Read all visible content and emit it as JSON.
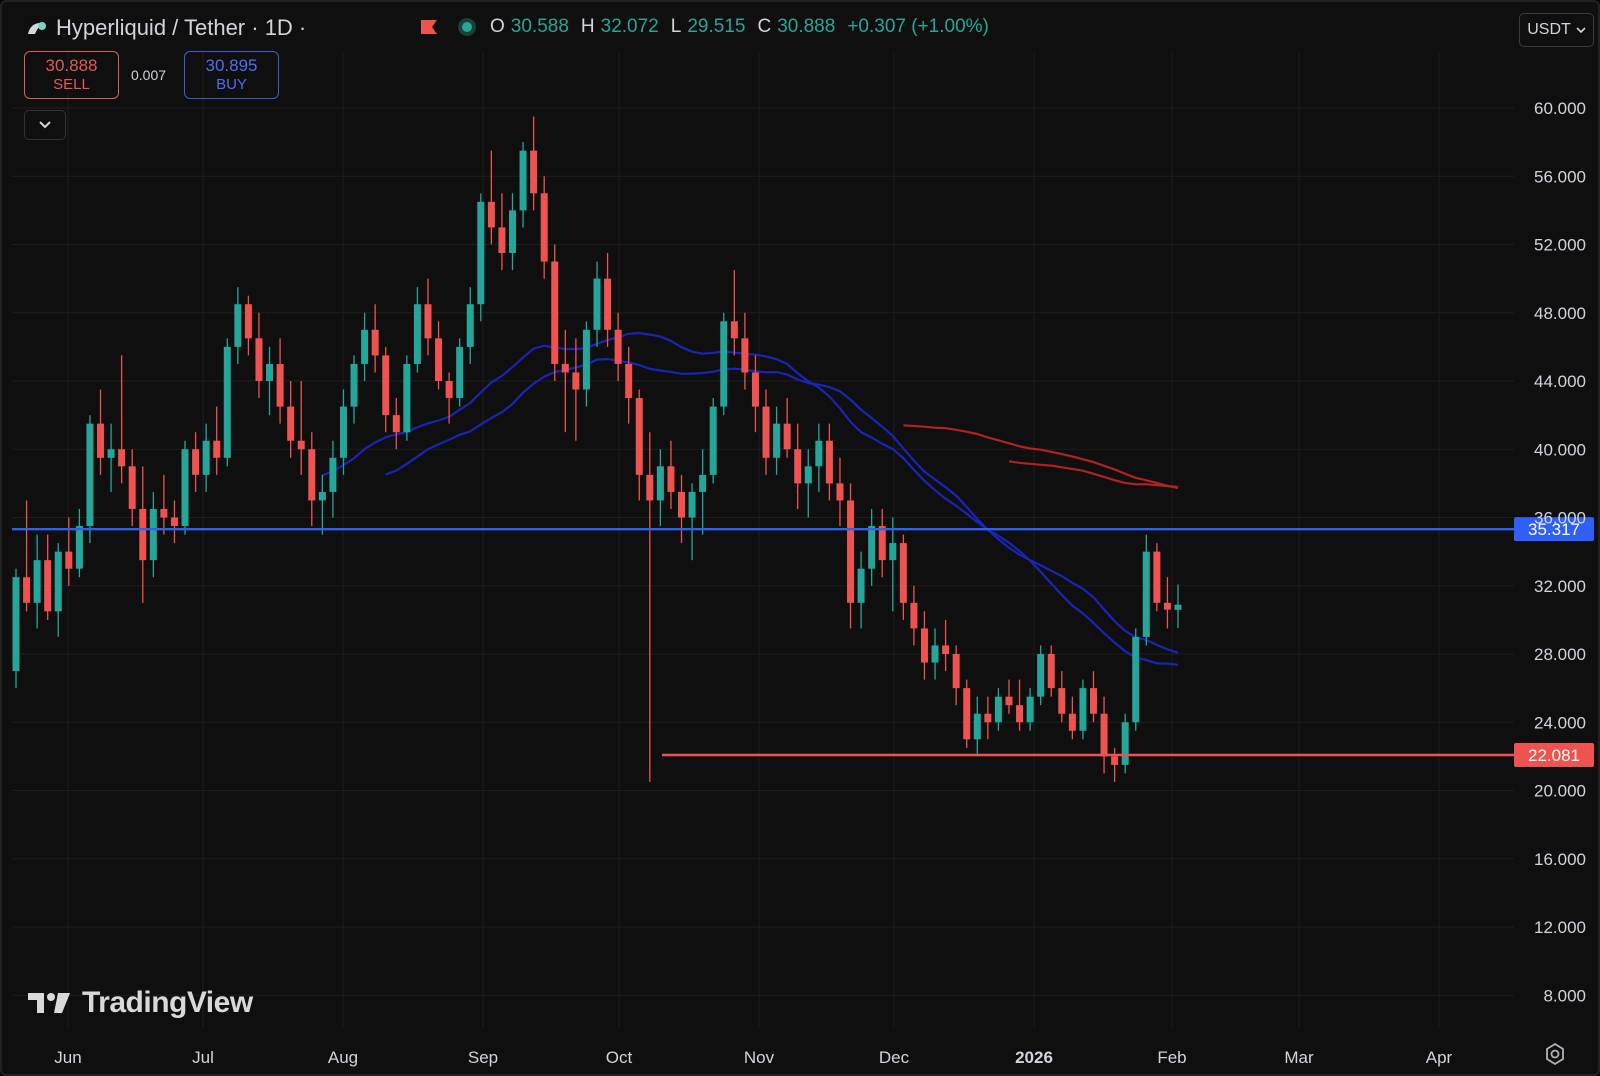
{
  "header": {
    "symbol_title": "Hyperliquid / Tether · 1D ·",
    "open_key": "O",
    "open": "30.588",
    "high_key": "H",
    "high": "32.072",
    "low_key": "L",
    "low": "29.515",
    "close_key": "C",
    "close": "30.888",
    "change": "+0.307 (+1.00%)",
    "currency": "USDT"
  },
  "trade": {
    "sell_price": "30.888",
    "sell_label": "SELL",
    "spread": "0.007",
    "buy_price": "30.895",
    "buy_label": "BUY"
  },
  "watermark": "TradingView",
  "icons": [
    "hyperliquid-logo-icon",
    "flag-icon",
    "market-status-icon",
    "chevron-down-icon",
    "settings-icon",
    "tradingview-logo-icon"
  ],
  "colors": {
    "up": "#26a69a",
    "down": "#ef5350",
    "blue_ma": "#1a24b8",
    "red_ma": "#b22222",
    "blue_level": "#2f5ff5",
    "red_level": "#ef5350"
  },
  "chart_data": {
    "type": "candlestick",
    "interval": "1D",
    "ylim": [
      6,
      64
    ],
    "y_ticks": [
      "60.000",
      "56.000",
      "52.000",
      "48.000",
      "44.000",
      "40.000",
      "36.000",
      "32.000",
      "28.000",
      "24.000",
      "20.000",
      "16.000",
      "12.000",
      "8.000"
    ],
    "x_ticks": [
      "Jun",
      "Jul",
      "Aug",
      "Sep",
      "Oct",
      "Nov",
      "Dec",
      "2026",
      "Feb",
      "Mar",
      "Apr"
    ],
    "horizontal_lines": [
      {
        "value": 35.317,
        "label": "35.317",
        "color": "#2f5ff5"
      },
      {
        "value": 22.081,
        "label": "22.081",
        "color": "#ef5350"
      }
    ],
    "candles_approx": [
      [
        27.0,
        33.0,
        26.0,
        32.5
      ],
      [
        32.5,
        37.0,
        30.5,
        31.0
      ],
      [
        31.0,
        35.0,
        29.5,
        33.5
      ],
      [
        33.5,
        35.0,
        30.0,
        30.5
      ],
      [
        30.5,
        34.5,
        29.0,
        34.0
      ],
      [
        34.0,
        36.0,
        32.0,
        33.0
      ],
      [
        33.0,
        36.5,
        32.5,
        35.5
      ],
      [
        35.5,
        42.0,
        34.5,
        41.5
      ],
      [
        41.5,
        43.5,
        38.5,
        39.5
      ],
      [
        39.5,
        41.5,
        37.5,
        40.0
      ],
      [
        40.0,
        45.5,
        38.0,
        39.0
      ],
      [
        39.0,
        40.0,
        35.5,
        36.5
      ],
      [
        36.5,
        39.0,
        31.0,
        33.5
      ],
      [
        33.5,
        37.5,
        32.5,
        36.5
      ],
      [
        36.5,
        38.5,
        35.0,
        36.0
      ],
      [
        36.0,
        37.0,
        34.5,
        35.5
      ],
      [
        35.5,
        40.5,
        35.0,
        40.0
      ],
      [
        40.0,
        41.0,
        37.5,
        38.5
      ],
      [
        38.5,
        41.5,
        37.5,
        40.5
      ],
      [
        40.5,
        42.5,
        38.5,
        39.5
      ],
      [
        39.5,
        46.5,
        39.0,
        46.0
      ],
      [
        46.0,
        49.5,
        45.0,
        48.5
      ],
      [
        48.5,
        49.0,
        45.5,
        46.5
      ],
      [
        46.5,
        48.0,
        43.0,
        44.0
      ],
      [
        44.0,
        46.0,
        42.0,
        45.0
      ],
      [
        45.0,
        46.5,
        41.5,
        42.5
      ],
      [
        42.5,
        44.0,
        39.5,
        40.5
      ],
      [
        40.5,
        44.0,
        38.5,
        40.0
      ],
      [
        40.0,
        41.0,
        35.5,
        37.0
      ],
      [
        37.0,
        38.5,
        35.0,
        37.5
      ],
      [
        37.5,
        40.5,
        36.0,
        39.5
      ],
      [
        39.5,
        43.5,
        38.5,
        42.5
      ],
      [
        42.5,
        45.5,
        41.5,
        45.0
      ],
      [
        45.0,
        48.0,
        44.0,
        47.0
      ],
      [
        47.0,
        48.5,
        44.5,
        45.5
      ],
      [
        45.5,
        46.0,
        41.0,
        42.0
      ],
      [
        42.0,
        43.0,
        40.0,
        41.0
      ],
      [
        41.0,
        45.5,
        40.5,
        45.0
      ],
      [
        45.0,
        49.5,
        44.5,
        48.5
      ],
      [
        48.5,
        50.0,
        45.5,
        46.5
      ],
      [
        46.5,
        47.5,
        43.5,
        44.0
      ],
      [
        44.0,
        44.5,
        41.5,
        43.0
      ],
      [
        43.0,
        46.5,
        42.5,
        46.0
      ],
      [
        46.0,
        49.5,
        45.0,
        48.5
      ],
      [
        48.5,
        55.0,
        47.5,
        54.5
      ],
      [
        54.5,
        57.5,
        52.0,
        53.0
      ],
      [
        53.0,
        55.0,
        50.5,
        51.5
      ],
      [
        51.5,
        55.0,
        50.5,
        54.0
      ],
      [
        54.0,
        58.0,
        53.0,
        57.5
      ],
      [
        57.5,
        59.5,
        54.0,
        55.0
      ],
      [
        55.0,
        56.0,
        50.0,
        51.0
      ],
      [
        51.0,
        52.0,
        44.0,
        45.0
      ],
      [
        45.0,
        47.0,
        41.0,
        44.5
      ],
      [
        44.5,
        46.5,
        40.5,
        43.5
      ],
      [
        43.5,
        47.5,
        42.5,
        47.0
      ],
      [
        47.0,
        51.0,
        46.0,
        50.0
      ],
      [
        50.0,
        51.5,
        46.0,
        47.0
      ],
      [
        47.0,
        48.0,
        44.0,
        45.0
      ],
      [
        45.0,
        46.0,
        41.5,
        43.0
      ],
      [
        43.0,
        43.5,
        37.0,
        38.5
      ],
      [
        38.5,
        41.0,
        20.5,
        37.0
      ],
      [
        37.0,
        40.0,
        35.5,
        39.0
      ],
      [
        39.0,
        40.5,
        36.5,
        37.5
      ],
      [
        37.5,
        38.5,
        34.5,
        36.0
      ],
      [
        36.0,
        38.0,
        33.5,
        37.5
      ],
      [
        37.5,
        40.0,
        35.0,
        38.5
      ],
      [
        38.5,
        43.0,
        38.0,
        42.5
      ],
      [
        42.5,
        48.0,
        42.0,
        47.5
      ],
      [
        47.5,
        50.5,
        45.5,
        46.5
      ],
      [
        46.5,
        48.0,
        43.5,
        44.5
      ],
      [
        44.5,
        45.5,
        41.0,
        42.5
      ],
      [
        42.5,
        43.5,
        38.5,
        39.5
      ],
      [
        39.5,
        42.5,
        38.5,
        41.5
      ],
      [
        41.5,
        43.0,
        39.5,
        40.0
      ],
      [
        40.0,
        41.5,
        36.5,
        38.0
      ],
      [
        38.0,
        40.0,
        36.0,
        39.0
      ],
      [
        39.0,
        41.5,
        37.5,
        40.5
      ],
      [
        40.5,
        41.5,
        37.0,
        38.0
      ],
      [
        38.0,
        39.5,
        35.5,
        37.0
      ],
      [
        37.0,
        38.0,
        29.5,
        31.0
      ],
      [
        31.0,
        34.0,
        29.5,
        33.0
      ],
      [
        33.0,
        36.5,
        32.0,
        35.5
      ],
      [
        35.5,
        36.5,
        32.5,
        33.5
      ],
      [
        33.5,
        36.0,
        30.5,
        34.5
      ],
      [
        34.5,
        35.0,
        30.0,
        31.0
      ],
      [
        31.0,
        32.0,
        28.5,
        29.5
      ],
      [
        29.5,
        30.5,
        26.5,
        27.5
      ],
      [
        27.5,
        29.5,
        26.5,
        28.5
      ],
      [
        28.5,
        30.0,
        27.0,
        28.0
      ],
      [
        28.0,
        28.5,
        25.0,
        26.0
      ],
      [
        26.0,
        26.5,
        22.5,
        23.0
      ],
      [
        23.0,
        25.5,
        22.0,
        24.5
      ],
      [
        24.5,
        25.5,
        23.0,
        24.0
      ],
      [
        24.0,
        26.0,
        23.5,
        25.5
      ],
      [
        25.5,
        26.5,
        24.5,
        25.0
      ],
      [
        25.0,
        26.5,
        23.5,
        24.0
      ],
      [
        24.0,
        26.0,
        23.5,
        25.5
      ],
      [
        25.5,
        28.5,
        25.0,
        28.0
      ],
      [
        28.0,
        28.5,
        25.5,
        26.0
      ],
      [
        26.0,
        27.0,
        24.0,
        24.5
      ],
      [
        24.5,
        25.5,
        23.0,
        23.5
      ],
      [
        23.5,
        26.5,
        23.0,
        26.0
      ],
      [
        26.0,
        27.0,
        24.0,
        24.5
      ],
      [
        24.5,
        25.5,
        21.0,
        22.0
      ],
      [
        22.0,
        22.5,
        20.5,
        21.5
      ],
      [
        21.5,
        24.5,
        21.0,
        24.0
      ],
      [
        24.0,
        29.5,
        23.5,
        29.0
      ],
      [
        29.0,
        35.0,
        28.5,
        34.0
      ],
      [
        34.0,
        34.5,
        30.5,
        31.0
      ],
      [
        31.0,
        32.5,
        29.5,
        30.6
      ],
      [
        30.588,
        32.072,
        29.515,
        30.888
      ]
    ]
  }
}
